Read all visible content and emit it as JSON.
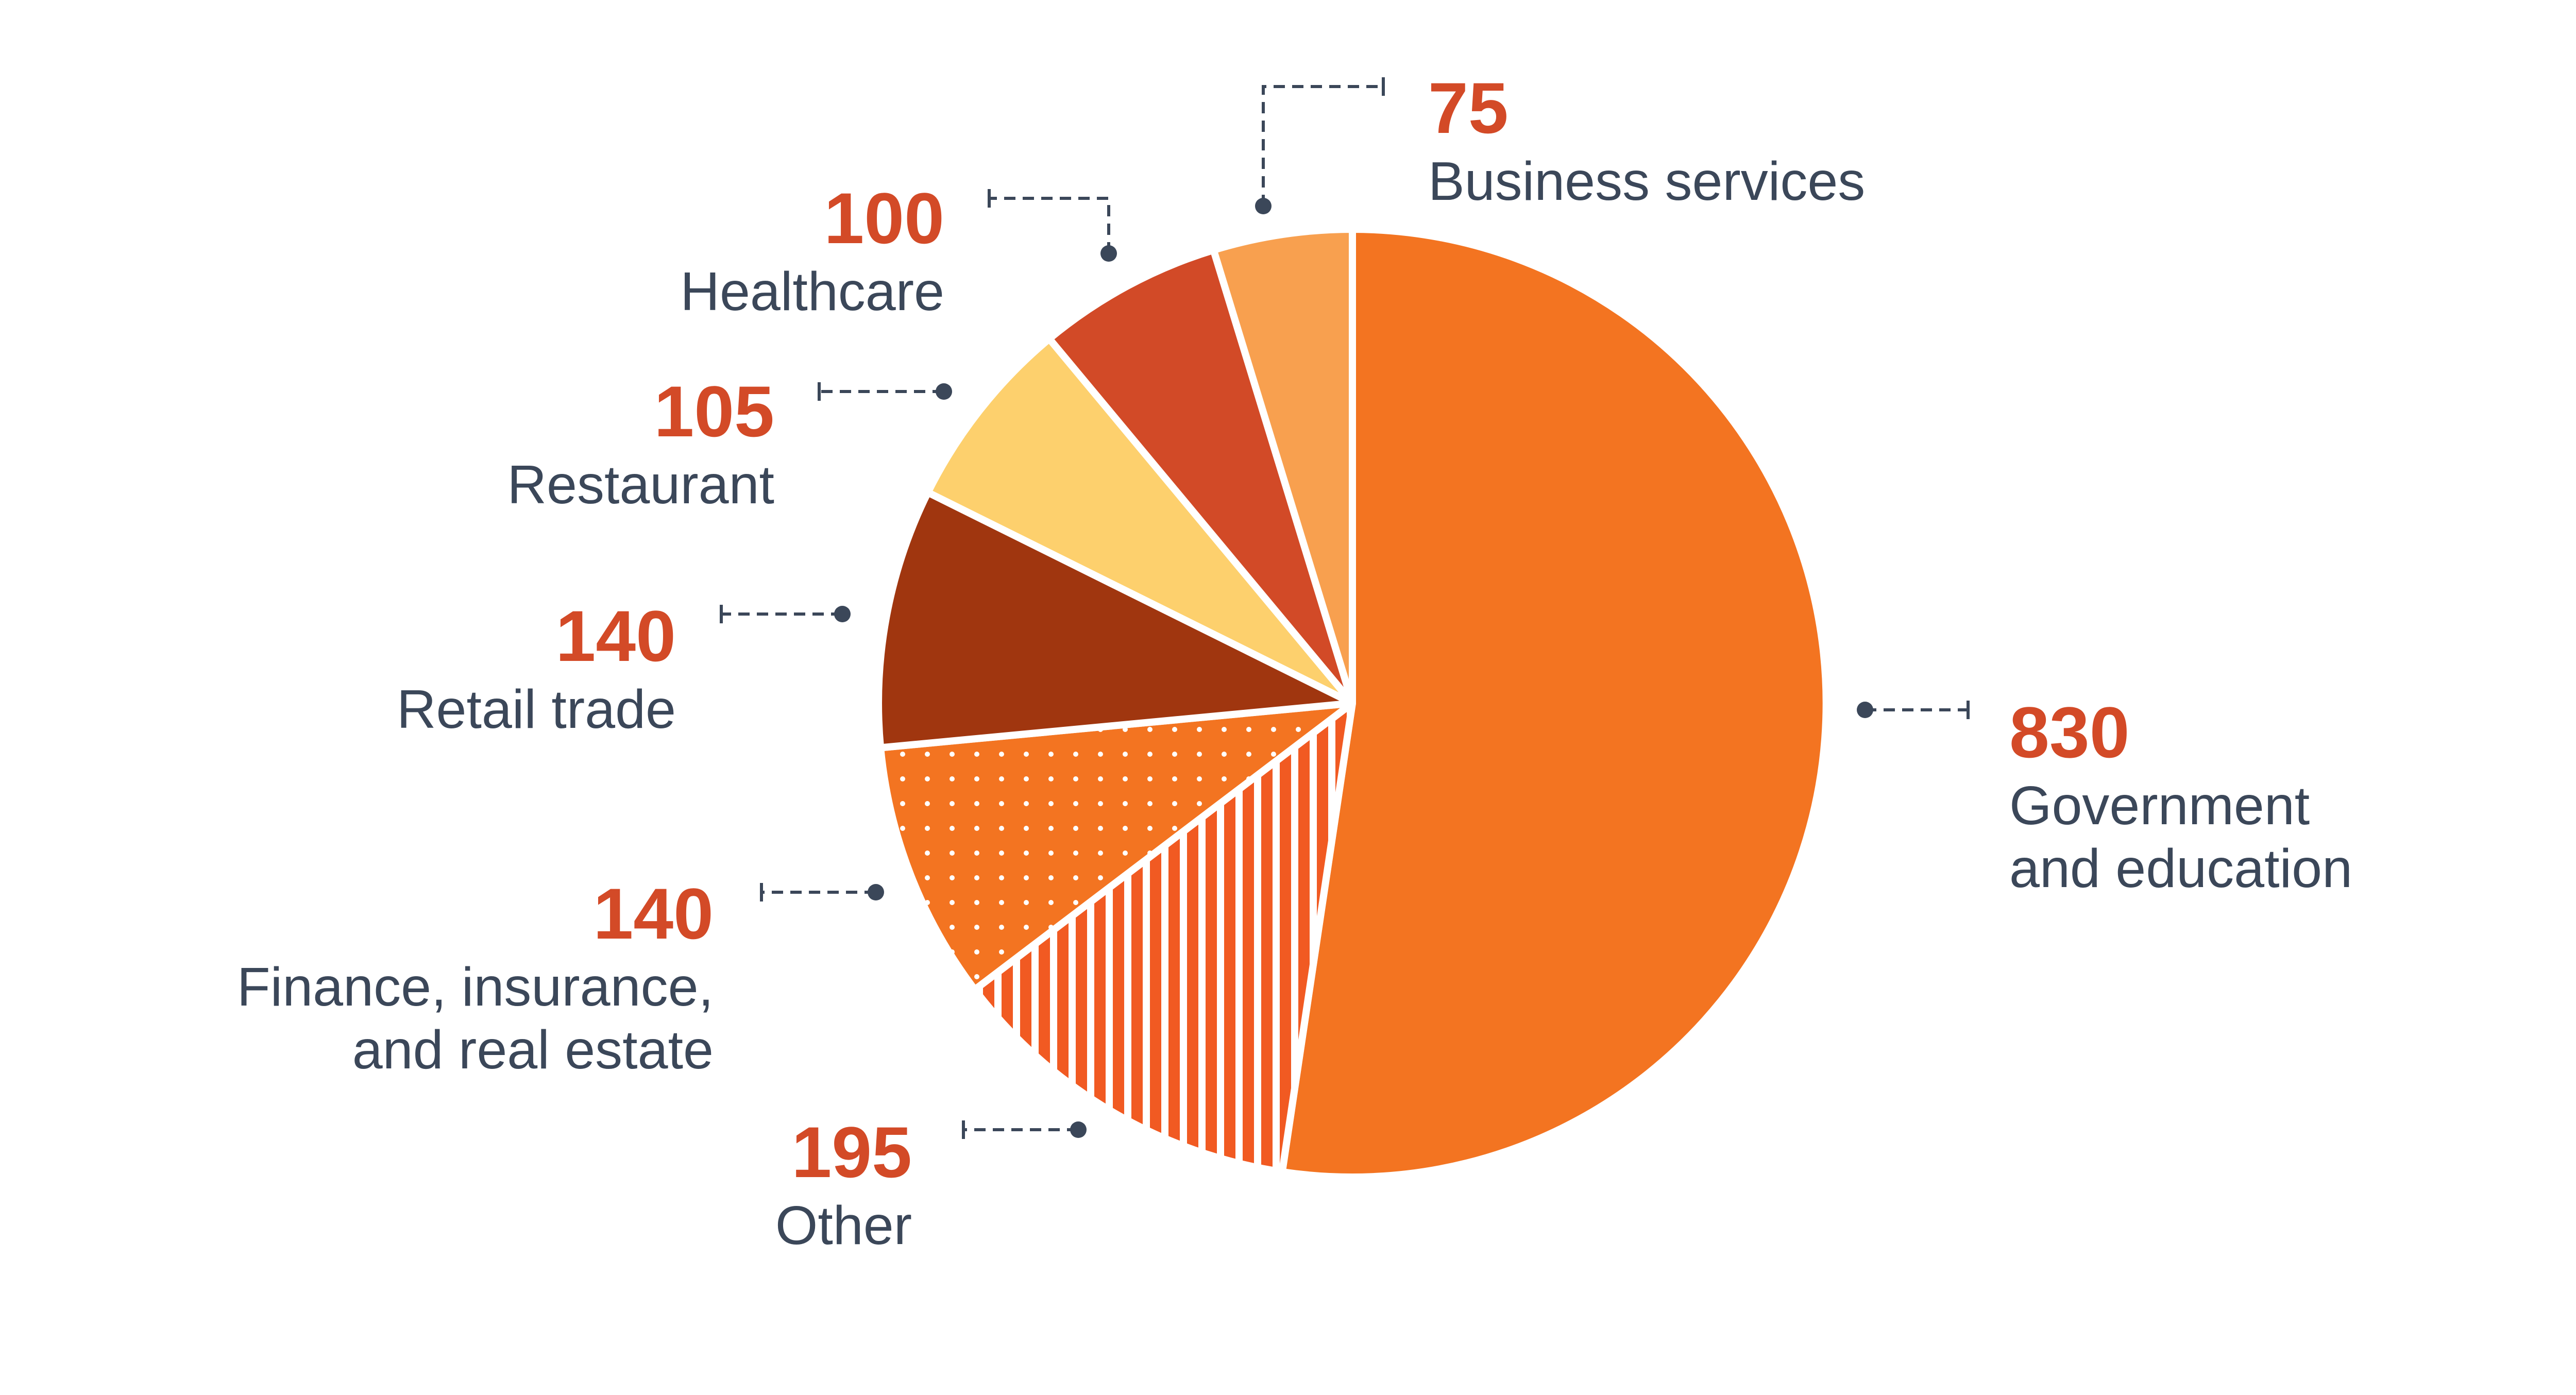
{
  "chart_data": {
    "type": "pie",
    "slices": [
      {
        "label": "Government\nand education",
        "value": 830,
        "color": "#f37421",
        "pattern": "solid"
      },
      {
        "label": "Other",
        "value": 195,
        "color": "#f15a22",
        "pattern": "stripes"
      },
      {
        "label": "Finance, insurance,\nand real estate",
        "value": 140,
        "color": "#f37421",
        "pattern": "dots"
      },
      {
        "label": "Retail trade",
        "value": 140,
        "color": "#a0360f",
        "pattern": "solid"
      },
      {
        "label": "Restaurant",
        "value": 105,
        "color": "#fdd06d",
        "pattern": "solid"
      },
      {
        "label": "Healthcare",
        "value": 100,
        "color": "#d24a27",
        "pattern": "solid"
      },
      {
        "label": "Business services",
        "value": 75,
        "color": "#f8a04f",
        "pattern": "solid"
      }
    ],
    "start_angle": "12 o'clock",
    "direction": "clockwise",
    "label_value_color": "#d34a27",
    "label_text_color": "#3b4759"
  }
}
